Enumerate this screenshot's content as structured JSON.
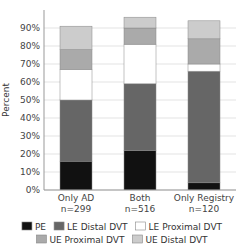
{
  "chart_data": {
    "type": "bar",
    "stacked": true,
    "ylabel": "Percent",
    "categories": [
      "Only AD\nn=299",
      "Both\nn=516",
      "Only Registry\nn=120"
    ],
    "series": [
      {
        "name": "PE",
        "color": "#111111",
        "values": [
          16,
          22,
          4
        ]
      },
      {
        "name": "LE Distal DVT",
        "color": "#666666",
        "values": [
          34,
          37,
          62
        ]
      },
      {
        "name": "LE Proximal DVT",
        "color": "#ffffff",
        "values": [
          17,
          22,
          4
        ]
      },
      {
        "name": "UE Proximal DVT",
        "color": "#aaaaaa",
        "values": [
          11,
          9,
          14
        ]
      },
      {
        "name": "UE Distal DVT",
        "color": "#cccccc",
        "values": [
          13,
          6,
          10
        ]
      }
    ],
    "ylim": [
      0,
      100
    ],
    "yticks": [
      {
        "value": 0,
        "label": "0%"
      },
      {
        "value": 10,
        "label": "10%"
      },
      {
        "value": 20,
        "label": "20%"
      },
      {
        "value": 30,
        "label": "30%"
      },
      {
        "value": 40,
        "label": "40%"
      },
      {
        "value": 50,
        "label": "50%"
      },
      {
        "value": 60,
        "label": "60%"
      },
      {
        "value": 70,
        "label": "70%"
      },
      {
        "value": 80,
        "label": "80%"
      },
      {
        "value": 90,
        "label": "90%"
      }
    ],
    "grid": true,
    "legend": "bottom"
  }
}
